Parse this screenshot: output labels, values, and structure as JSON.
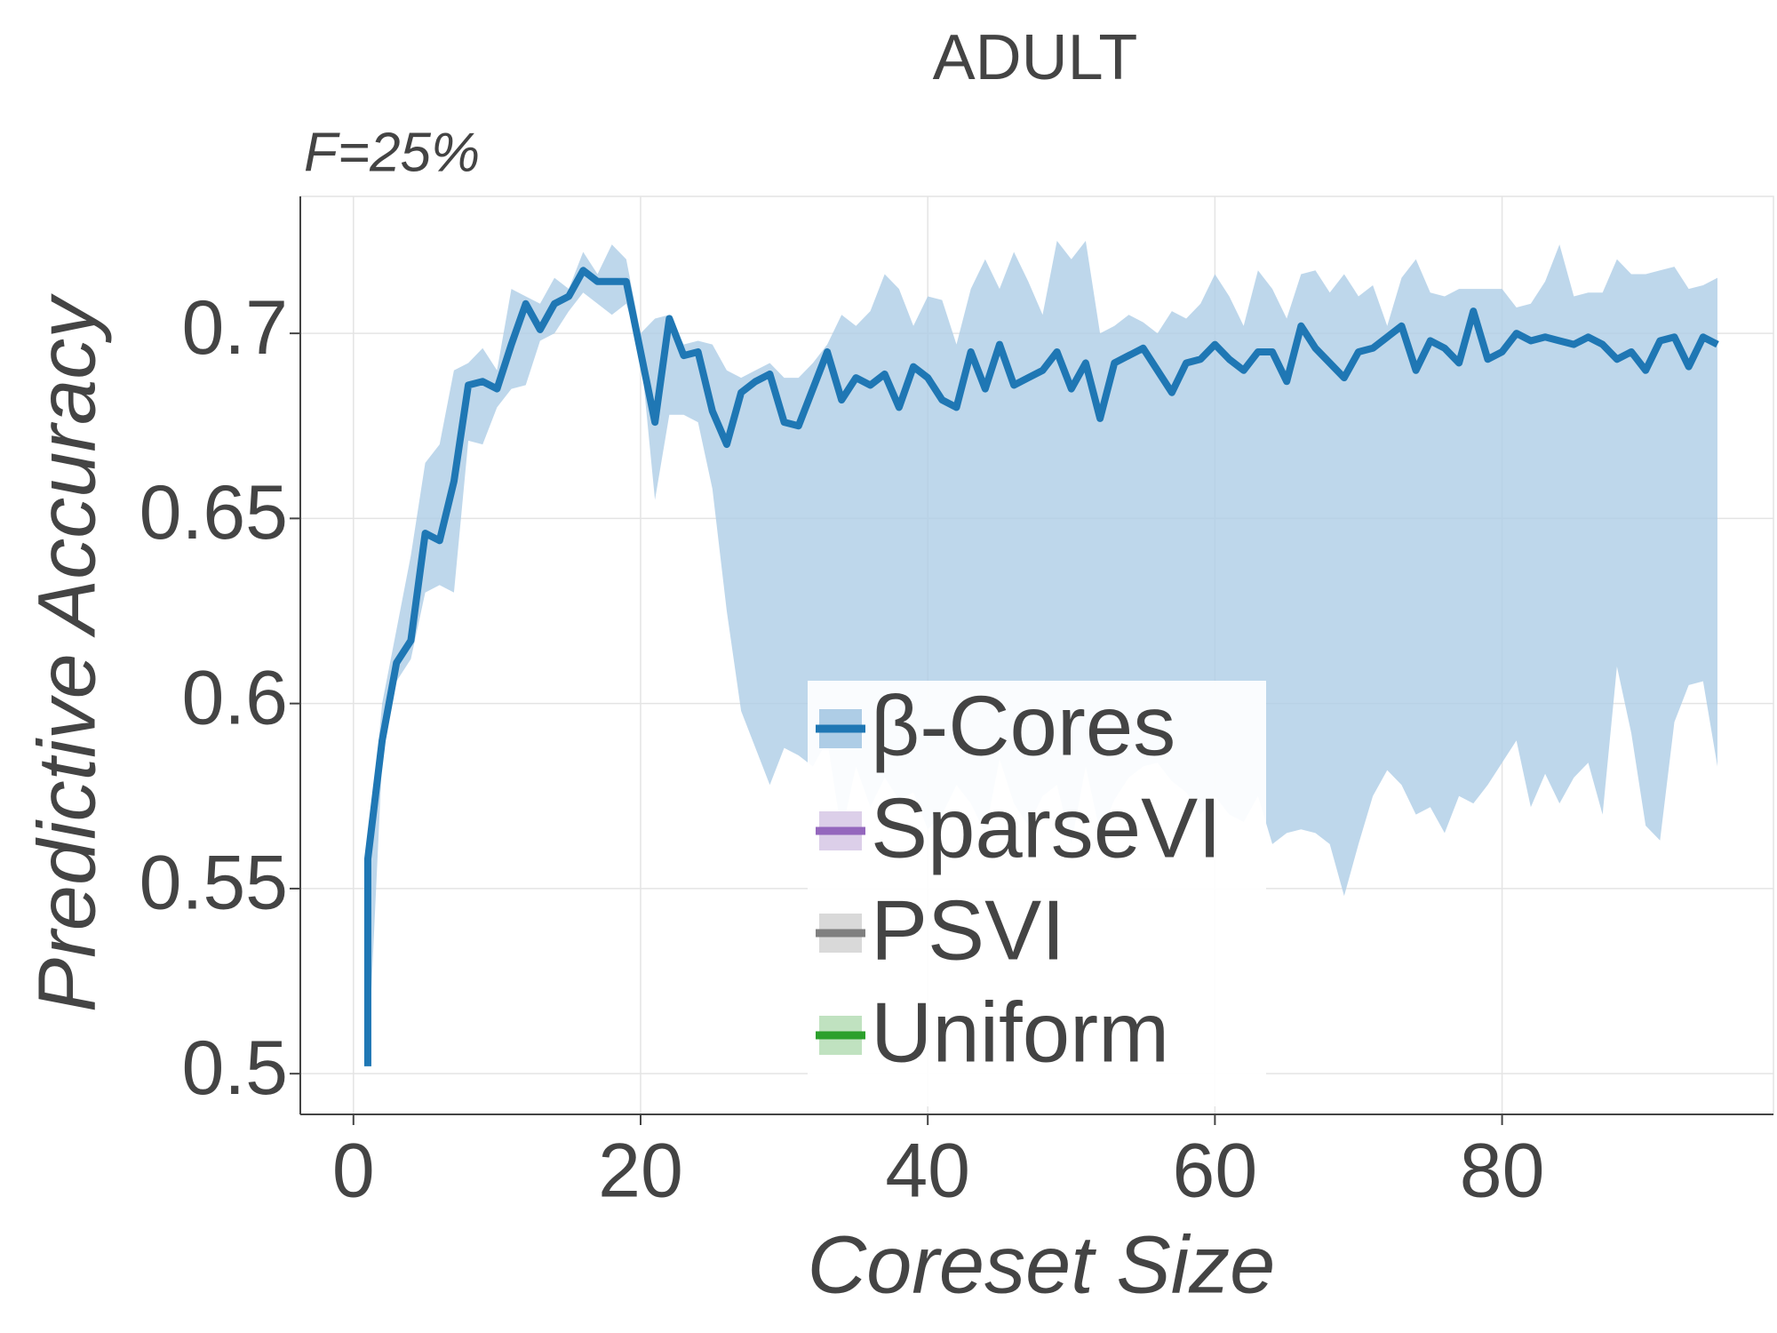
{
  "chart_data": {
    "type": "line",
    "title": "ADULT",
    "subtitle": "F=25%",
    "x_label": "Coreset Size",
    "y_label": "Predictive Accuracy",
    "xlim": [
      -3.7,
      98.9
    ],
    "ylim": [
      0.489,
      0.737
    ],
    "xticks": [
      0,
      20,
      40,
      60,
      80
    ],
    "yticks": [
      0.5,
      0.55,
      0.6,
      0.65,
      0.7
    ],
    "grid": true,
    "legend_position": "lower center",
    "x": [
      1,
      1,
      2,
      3,
      4,
      5,
      6,
      7,
      8,
      9,
      10,
      11,
      12,
      13,
      14,
      15,
      16,
      17,
      18,
      19,
      20,
      21,
      22,
      23,
      24,
      25,
      26,
      27,
      28,
      29,
      30,
      31,
      32,
      33,
      34,
      35,
      36,
      37,
      38,
      39,
      40,
      41,
      42,
      43,
      44,
      45,
      46,
      47,
      48,
      49,
      50,
      51,
      52,
      53,
      54,
      55,
      56,
      57,
      58,
      59,
      60,
      61,
      62,
      63,
      64,
      65,
      66,
      67,
      68,
      69,
      70,
      71,
      72,
      73,
      74,
      75,
      76,
      77,
      78,
      79,
      80,
      81,
      82,
      83,
      84,
      85,
      86,
      87,
      88,
      89,
      90,
      91,
      92,
      93,
      94,
      95
    ],
    "series": [
      {
        "name": "β-Cores",
        "color": "#1f77b4",
        "band_color": "#aecde6",
        "values": [
          0.502,
          0.558,
          0.59,
          0.611,
          0.617,
          0.646,
          0.644,
          0.66,
          0.686,
          0.687,
          0.685,
          0.697,
          0.708,
          0.701,
          0.708,
          0.71,
          0.717,
          0.714,
          0.714,
          0.714,
          0.695,
          0.676,
          0.704,
          0.694,
          0.695,
          0.679,
          0.67,
          0.684,
          0.687,
          0.689,
          0.676,
          0.675,
          0.685,
          0.695,
          0.682,
          0.688,
          0.686,
          0.689,
          0.68,
          0.691,
          0.688,
          0.682,
          0.68,
          0.695,
          0.685,
          0.697,
          0.686,
          0.688,
          0.69,
          0.695,
          0.685,
          0.692,
          0.677,
          0.692,
          0.694,
          0.696,
          0.69,
          0.684,
          0.692,
          0.693,
          0.697,
          0.693,
          0.69,
          0.695,
          0.695,
          0.687,
          0.702,
          0.696,
          0.692,
          0.688,
          0.695,
          0.696,
          0.699,
          0.702,
          0.69,
          0.698,
          0.696,
          0.692,
          0.706,
          0.693,
          0.695,
          0.7,
          0.698,
          0.699,
          0.698,
          0.697,
          0.699,
          0.697,
          0.693,
          0.695,
          0.69,
          0.698,
          0.699,
          0.691,
          0.699,
          0.697
        ],
        "upper": [
          0.502,
          0.558,
          0.6,
          0.62,
          0.64,
          0.665,
          0.67,
          0.69,
          0.692,
          0.696,
          0.69,
          0.712,
          0.71,
          0.708,
          0.715,
          0.712,
          0.722,
          0.716,
          0.724,
          0.72,
          0.7,
          0.704,
          0.705,
          0.697,
          0.698,
          0.697,
          0.69,
          0.688,
          0.69,
          0.692,
          0.688,
          0.688,
          0.692,
          0.697,
          0.705,
          0.702,
          0.706,
          0.716,
          0.712,
          0.702,
          0.71,
          0.709,
          0.697,
          0.712,
          0.72,
          0.712,
          0.722,
          0.714,
          0.705,
          0.725,
          0.72,
          0.725,
          0.7,
          0.702,
          0.705,
          0.703,
          0.7,
          0.706,
          0.704,
          0.708,
          0.716,
          0.71,
          0.702,
          0.717,
          0.712,
          0.704,
          0.716,
          0.717,
          0.711,
          0.716,
          0.71,
          0.713,
          0.702,
          0.715,
          0.72,
          0.711,
          0.71,
          0.712,
          0.712,
          0.712,
          0.712,
          0.707,
          0.708,
          0.714,
          0.724,
          0.71,
          0.711,
          0.711,
          0.72,
          0.716,
          0.716,
          0.717,
          0.718,
          0.712,
          0.713,
          0.715
        ],
        "lower": [
          0.502,
          0.502,
          0.585,
          0.606,
          0.612,
          0.63,
          0.632,
          0.63,
          0.671,
          0.67,
          0.68,
          0.685,
          0.686,
          0.698,
          0.7,
          0.706,
          0.711,
          0.708,
          0.705,
          0.708,
          0.695,
          0.655,
          0.678,
          0.678,
          0.676,
          0.658,
          0.625,
          0.598,
          0.588,
          0.578,
          0.588,
          0.586,
          0.583,
          0.59,
          0.565,
          0.583,
          0.572,
          0.58,
          0.574,
          0.576,
          0.566,
          0.57,
          0.578,
          0.573,
          0.565,
          0.585,
          0.573,
          0.567,
          0.575,
          0.578,
          0.562,
          0.583,
          0.565,
          0.574,
          0.58,
          0.583,
          0.584,
          0.579,
          0.576,
          0.57,
          0.575,
          0.57,
          0.568,
          0.575,
          0.562,
          0.565,
          0.566,
          0.565,
          0.562,
          0.548,
          0.562,
          0.575,
          0.582,
          0.578,
          0.57,
          0.572,
          0.565,
          0.575,
          0.573,
          0.578,
          0.584,
          0.59,
          0.572,
          0.581,
          0.573,
          0.58,
          0.584,
          0.57,
          0.61,
          0.592,
          0.567,
          0.563,
          0.595,
          0.605,
          0.606,
          0.583
        ]
      },
      {
        "name": "SparseVI",
        "color": "#9467bd",
        "band_color": "#dccfe9"
      },
      {
        "name": "PSVI",
        "color": "#7f7f7f",
        "band_color": "#d9d9d9"
      },
      {
        "name": "Uniform",
        "color": "#2ca02c",
        "band_color": "#c0e2c0"
      }
    ]
  }
}
